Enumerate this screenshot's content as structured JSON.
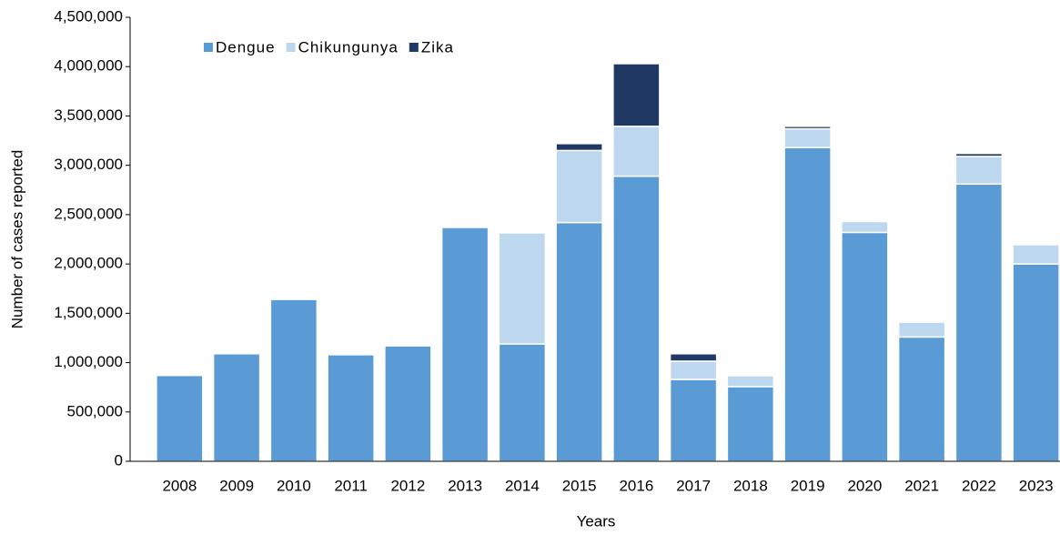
{
  "chart_data": {
    "type": "stacked-bar",
    "x_label": "Years",
    "y_label": "Number of cases reported",
    "categories": [
      "2008",
      "2009",
      "2010",
      "2011",
      "2012",
      "2013",
      "2014",
      "2015",
      "2016",
      "2017",
      "2018",
      "2019",
      "2020",
      "2021",
      "2022",
      "2023"
    ],
    "series": [
      {
        "name": "Dengue",
        "color": "#5b9bd5",
        "values": [
          870000,
          1090000,
          1640000,
          1080000,
          1170000,
          2370000,
          1190000,
          2420000,
          2890000,
          830000,
          757000,
          3180000,
          2320000,
          1260000,
          2810000,
          2000000
        ]
      },
      {
        "name": "Chikungunya",
        "color": "#bdd7ee",
        "values": [
          0,
          0,
          0,
          0,
          0,
          0,
          1125000,
          730000,
          505000,
          185000,
          110000,
          190000,
          110000,
          150000,
          280000,
          195000
        ]
      },
      {
        "name": "Zika",
        "color": "#1f3864",
        "values": [
          0,
          0,
          0,
          0,
          0,
          0,
          0,
          70000,
          635000,
          75000,
          0,
          25000,
          0,
          0,
          30000,
          0
        ]
      }
    ],
    "ylim": [
      0,
      4500000
    ],
    "yticks": [
      0,
      {
        "value": 500000,
        "label": "500,000"
      },
      {
        "value": 1000000,
        "label": "1,000,000"
      },
      {
        "value": 1500000,
        "label": "1,500,000"
      },
      {
        "value": 2000000,
        "label": "2,000,000"
      },
      {
        "value": 2500000,
        "label": "2,500,000"
      },
      {
        "value": 3000000,
        "label": "3,000,000"
      },
      {
        "value": 3500000,
        "label": "3,500,000"
      },
      {
        "value": 4000000,
        "label": "4,000,000"
      },
      {
        "value": 4500000,
        "label": "4,500,000"
      }
    ],
    "grid": false,
    "legend": "top-left"
  }
}
